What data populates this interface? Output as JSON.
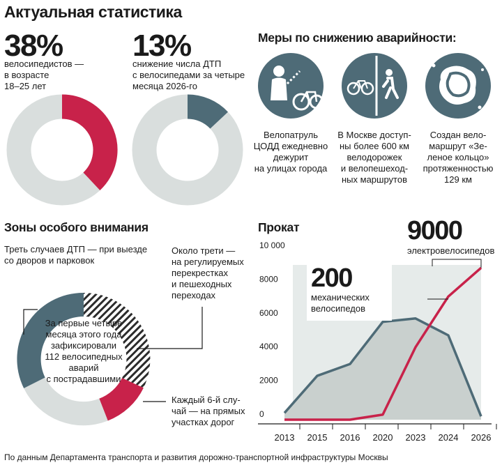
{
  "header": {
    "title": "Актуальная статистика"
  },
  "stats": [
    {
      "value": "38%",
      "lines": [
        "велосипедистов —",
        "в возрасте",
        "18–25 лет"
      ],
      "share": 0.38,
      "color": "#c8224a"
    },
    {
      "value": "13%",
      "lines": [
        "снижение числа ДТП",
        "с велосипедами за четыре",
        "месяца 2026-го"
      ],
      "share": 0.13,
      "color": "#4e6b77"
    }
  ],
  "measures": {
    "title": "Меры по снижению аварийности:",
    "items": [
      {
        "icon": "cycling-patrol-officer-icon",
        "lines": [
          "Велопатруль",
          "ЦОДД ежедневно",
          "дежурит",
          "на улицах города"
        ]
      },
      {
        "icon": "bike-and-pedestrian-lane-icon",
        "lines": [
          "В Москве доступ-",
          "ны более 600 км",
          "велодорожек",
          "и велопешеход-",
          "ных маршрутов"
        ]
      },
      {
        "icon": "green-ring-route-map-icon",
        "lines": [
          "Создан вело-",
          "маршрут «Зе-",
          "леное кольцо»",
          "протяженностью",
          "129 км"
        ]
      }
    ]
  },
  "zones": {
    "title": "Зоны особого внимания",
    "center_lines": [
      "За первые четыре",
      "месяца этого года",
      "зафиксировали",
      "112 велосипедных",
      "аварий",
      "с пострадавшими"
    ],
    "labels": [
      {
        "lines": [
          "Треть случаев ДТП — при выезде",
          "со дворов и парковок"
        ]
      },
      {
        "lines": [
          "Около трети —",
          "на регулируемых",
          "перекрестках",
          "и пешеходных",
          "переходах"
        ]
      },
      {
        "lines": [
          "Каждый 6-й слу-",
          "чай — на прямых",
          "участках дорог"
        ]
      }
    ]
  },
  "chart_data": {
    "type": "line",
    "title": "Прокат",
    "categories": [
      "2013",
      "2015",
      "2016",
      "2020",
      "2023",
      "2024",
      "2026"
    ],
    "y_ticks": [
      "10 000",
      "8000",
      "6000",
      "4000",
      "2000",
      "0"
    ],
    "ylim": [
      0,
      10000
    ],
    "grid": false,
    "series": [
      {
        "name": "механических велосипедов",
        "color": "#4e6b77",
        "values": [
          400,
          2600,
          3300,
          5800,
          6000,
          5000,
          200
        ]
      },
      {
        "name": "электровелосипедов",
        "color": "#c8224a",
        "values": [
          0,
          0,
          0,
          300,
          4300,
          7300,
          9000
        ]
      }
    ],
    "annotations": [
      {
        "value": "200",
        "text": "механических велосипедов"
      },
      {
        "value": "9000",
        "text": "электровелосипедов"
      }
    ]
  },
  "footer": {
    "source": "По данным Департамента транспорта и развития дорожно-транспортной инфраструктуры Москвы"
  }
}
